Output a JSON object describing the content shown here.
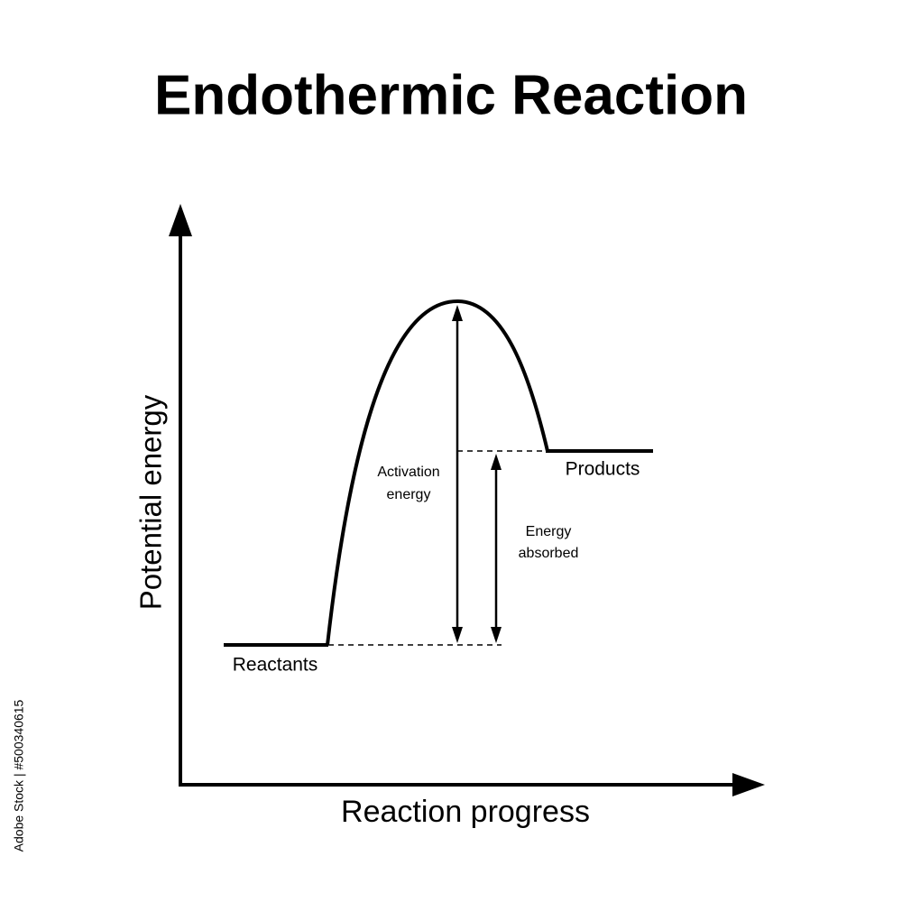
{
  "header": {
    "title": "Endothermic Reaction"
  },
  "axes": {
    "y_label": "Potential energy",
    "x_label": "Reaction progress"
  },
  "labels": {
    "reactants": "Reactants",
    "products": "Products",
    "activation_energy": [
      "Activation",
      "energy"
    ],
    "energy_absorbed": [
      "Energy",
      "absorbed"
    ]
  },
  "watermark": "Adobe Stock | #500340615"
}
